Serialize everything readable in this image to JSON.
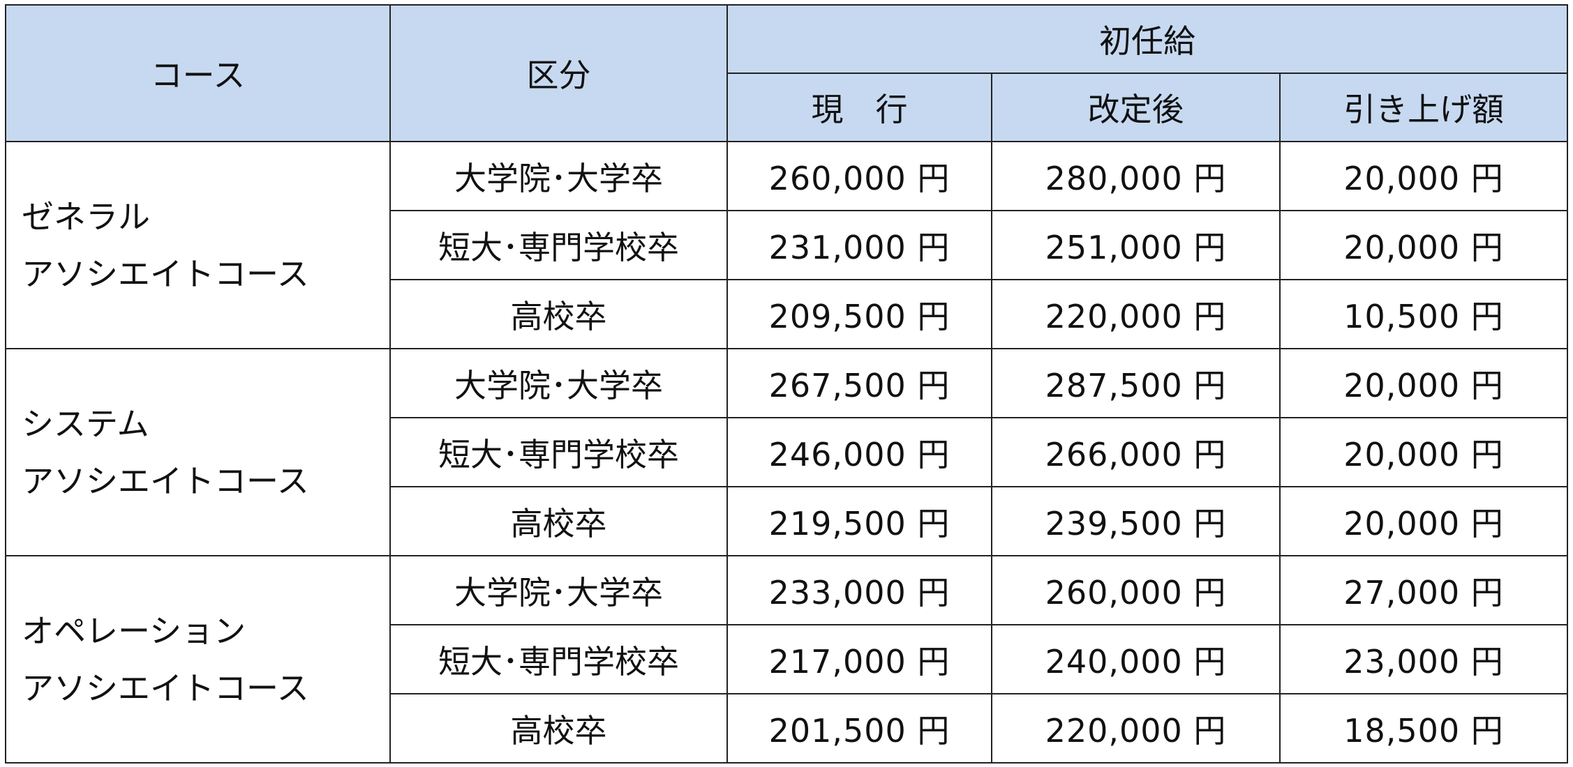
{
  "header": {
    "course": "コース",
    "category": "区分",
    "starting_salary": "初任給",
    "current": "現　行",
    "revised": "改定後",
    "increase": "引き上げ額"
  },
  "courses": [
    {
      "name_line1": "ゼネラル",
      "name_line2": "アソシエイトコース",
      "rows": [
        {
          "category": "大学院･大学卒",
          "current": "260,000 円",
          "revised": "280,000 円",
          "increase": "20,000 円"
        },
        {
          "category": "短大･専門学校卒",
          "current": "231,000 円",
          "revised": "251,000 円",
          "increase": "20,000 円"
        },
        {
          "category": "高校卒",
          "current": "209,500 円",
          "revised": "220,000 円",
          "increase": "10,500 円"
        }
      ]
    },
    {
      "name_line1": "システム",
      "name_line2": "アソシエイトコース",
      "rows": [
        {
          "category": "大学院･大学卒",
          "current": "267,500 円",
          "revised": "287,500 円",
          "increase": "20,000 円"
        },
        {
          "category": "短大･専門学校卒",
          "current": "246,000 円",
          "revised": "266,000 円",
          "increase": "20,000 円"
        },
        {
          "category": "高校卒",
          "current": "219,500 円",
          "revised": "239,500 円",
          "increase": "20,000 円"
        }
      ]
    },
    {
      "name_line1": "オペレーション",
      "name_line2": "アソシエイトコース",
      "rows": [
        {
          "category": "大学院･大学卒",
          "current": "233,000 円",
          "revised": "260,000 円",
          "increase": "27,000 円"
        },
        {
          "category": "短大･専門学校卒",
          "current": "217,000 円",
          "revised": "240,000 円",
          "increase": "23,000 円"
        },
        {
          "category": "高校卒",
          "current": "201,500 円",
          "revised": "220,000 円",
          "increase": "18,500 円"
        }
      ]
    }
  ],
  "colors": {
    "header_bg": "#c6d9f0",
    "border": "#222222"
  }
}
